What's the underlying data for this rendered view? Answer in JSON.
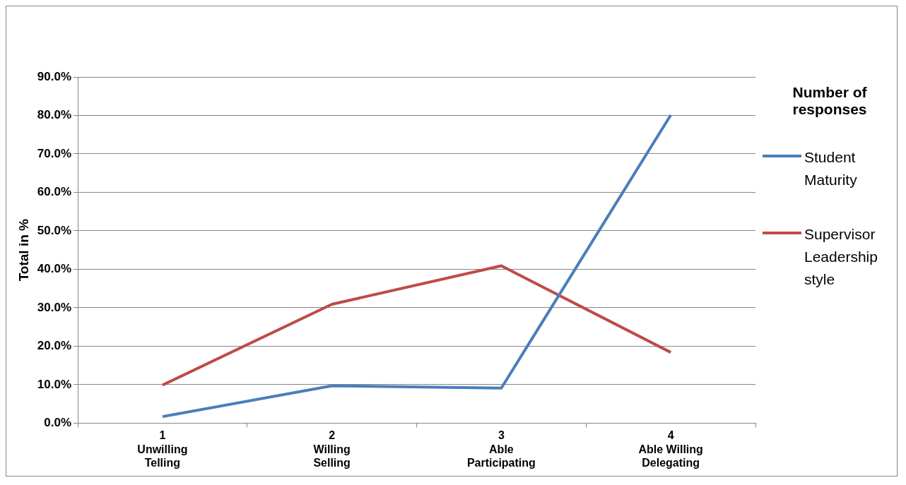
{
  "chart_data": {
    "type": "line",
    "ylabel": "Total in %",
    "legend_title": "Number of responses",
    "legend": "right",
    "categories": [
      "1\nUnwilling\nTelling",
      "2\nWilling\nSelling",
      "3\nAble\nParticipating",
      "4\nAble Willing\nDelegating"
    ],
    "series": [
      {
        "name": "Student Maturity",
        "color": "#4a7ebb",
        "values": [
          1.7,
          9.7,
          9.1,
          80.1
        ]
      },
      {
        "name": "Supervisor Leadership style",
        "color": "#be4b48",
        "values": [
          9.9,
          30.9,
          40.9,
          18.4
        ]
      }
    ],
    "ylim": [
      0,
      90
    ],
    "yticks": [
      {
        "value": 0,
        "label": "0.0%"
      },
      {
        "value": 10,
        "label": "10.0%"
      },
      {
        "value": 20,
        "label": "20.0%"
      },
      {
        "value": 30,
        "label": "30.0%"
      },
      {
        "value": 40,
        "label": "40.0%"
      },
      {
        "value": 50,
        "label": "50.0%"
      },
      {
        "value": 60,
        "label": "60.0%"
      },
      {
        "value": 70,
        "label": "70.0%"
      },
      {
        "value": 80,
        "label": "80.0%"
      },
      {
        "value": 90,
        "label": "90.0%"
      }
    ],
    "grid": "y",
    "marker": "none",
    "line_style": "solid"
  }
}
